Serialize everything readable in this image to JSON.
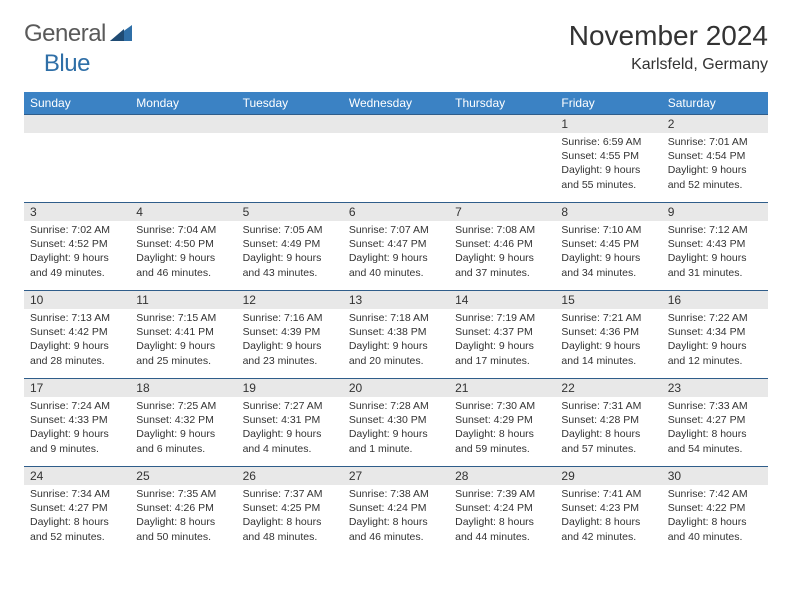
{
  "logo": {
    "general": "General",
    "blue": "Blue"
  },
  "title": "November 2024",
  "location": "Karlsfeld, Germany",
  "colors": {
    "header_bg": "#3b82c4",
    "header_text": "#ffffff",
    "daynum_bg": "#e8e8e8",
    "border": "#2f5d8a",
    "text": "#333333",
    "logo_blue": "#2f6fa7",
    "logo_gray": "#5a5a5a",
    "background": "#ffffff"
  },
  "fonts": {
    "month_title_size": 28,
    "location_size": 16,
    "header_size": 12,
    "daynum_size": 12,
    "body_size": 10.5
  },
  "columns": [
    "Sunday",
    "Monday",
    "Tuesday",
    "Wednesday",
    "Thursday",
    "Friday",
    "Saturday"
  ],
  "weeks": [
    [
      {
        "n": "",
        "sr": "",
        "ss": "",
        "dl": ""
      },
      {
        "n": "",
        "sr": "",
        "ss": "",
        "dl": ""
      },
      {
        "n": "",
        "sr": "",
        "ss": "",
        "dl": ""
      },
      {
        "n": "",
        "sr": "",
        "ss": "",
        "dl": ""
      },
      {
        "n": "",
        "sr": "",
        "ss": "",
        "dl": ""
      },
      {
        "n": "1",
        "sr": "Sunrise: 6:59 AM",
        "ss": "Sunset: 4:55 PM",
        "dl": "Daylight: 9 hours and 55 minutes."
      },
      {
        "n": "2",
        "sr": "Sunrise: 7:01 AM",
        "ss": "Sunset: 4:54 PM",
        "dl": "Daylight: 9 hours and 52 minutes."
      }
    ],
    [
      {
        "n": "3",
        "sr": "Sunrise: 7:02 AM",
        "ss": "Sunset: 4:52 PM",
        "dl": "Daylight: 9 hours and 49 minutes."
      },
      {
        "n": "4",
        "sr": "Sunrise: 7:04 AM",
        "ss": "Sunset: 4:50 PM",
        "dl": "Daylight: 9 hours and 46 minutes."
      },
      {
        "n": "5",
        "sr": "Sunrise: 7:05 AM",
        "ss": "Sunset: 4:49 PM",
        "dl": "Daylight: 9 hours and 43 minutes."
      },
      {
        "n": "6",
        "sr": "Sunrise: 7:07 AM",
        "ss": "Sunset: 4:47 PM",
        "dl": "Daylight: 9 hours and 40 minutes."
      },
      {
        "n": "7",
        "sr": "Sunrise: 7:08 AM",
        "ss": "Sunset: 4:46 PM",
        "dl": "Daylight: 9 hours and 37 minutes."
      },
      {
        "n": "8",
        "sr": "Sunrise: 7:10 AM",
        "ss": "Sunset: 4:45 PM",
        "dl": "Daylight: 9 hours and 34 minutes."
      },
      {
        "n": "9",
        "sr": "Sunrise: 7:12 AM",
        "ss": "Sunset: 4:43 PM",
        "dl": "Daylight: 9 hours and 31 minutes."
      }
    ],
    [
      {
        "n": "10",
        "sr": "Sunrise: 7:13 AM",
        "ss": "Sunset: 4:42 PM",
        "dl": "Daylight: 9 hours and 28 minutes."
      },
      {
        "n": "11",
        "sr": "Sunrise: 7:15 AM",
        "ss": "Sunset: 4:41 PM",
        "dl": "Daylight: 9 hours and 25 minutes."
      },
      {
        "n": "12",
        "sr": "Sunrise: 7:16 AM",
        "ss": "Sunset: 4:39 PM",
        "dl": "Daylight: 9 hours and 23 minutes."
      },
      {
        "n": "13",
        "sr": "Sunrise: 7:18 AM",
        "ss": "Sunset: 4:38 PM",
        "dl": "Daylight: 9 hours and 20 minutes."
      },
      {
        "n": "14",
        "sr": "Sunrise: 7:19 AM",
        "ss": "Sunset: 4:37 PM",
        "dl": "Daylight: 9 hours and 17 minutes."
      },
      {
        "n": "15",
        "sr": "Sunrise: 7:21 AM",
        "ss": "Sunset: 4:36 PM",
        "dl": "Daylight: 9 hours and 14 minutes."
      },
      {
        "n": "16",
        "sr": "Sunrise: 7:22 AM",
        "ss": "Sunset: 4:34 PM",
        "dl": "Daylight: 9 hours and 12 minutes."
      }
    ],
    [
      {
        "n": "17",
        "sr": "Sunrise: 7:24 AM",
        "ss": "Sunset: 4:33 PM",
        "dl": "Daylight: 9 hours and 9 minutes."
      },
      {
        "n": "18",
        "sr": "Sunrise: 7:25 AM",
        "ss": "Sunset: 4:32 PM",
        "dl": "Daylight: 9 hours and 6 minutes."
      },
      {
        "n": "19",
        "sr": "Sunrise: 7:27 AM",
        "ss": "Sunset: 4:31 PM",
        "dl": "Daylight: 9 hours and 4 minutes."
      },
      {
        "n": "20",
        "sr": "Sunrise: 7:28 AM",
        "ss": "Sunset: 4:30 PM",
        "dl": "Daylight: 9 hours and 1 minute."
      },
      {
        "n": "21",
        "sr": "Sunrise: 7:30 AM",
        "ss": "Sunset: 4:29 PM",
        "dl": "Daylight: 8 hours and 59 minutes."
      },
      {
        "n": "22",
        "sr": "Sunrise: 7:31 AM",
        "ss": "Sunset: 4:28 PM",
        "dl": "Daylight: 8 hours and 57 minutes."
      },
      {
        "n": "23",
        "sr": "Sunrise: 7:33 AM",
        "ss": "Sunset: 4:27 PM",
        "dl": "Daylight: 8 hours and 54 minutes."
      }
    ],
    [
      {
        "n": "24",
        "sr": "Sunrise: 7:34 AM",
        "ss": "Sunset: 4:27 PM",
        "dl": "Daylight: 8 hours and 52 minutes."
      },
      {
        "n": "25",
        "sr": "Sunrise: 7:35 AM",
        "ss": "Sunset: 4:26 PM",
        "dl": "Daylight: 8 hours and 50 minutes."
      },
      {
        "n": "26",
        "sr": "Sunrise: 7:37 AM",
        "ss": "Sunset: 4:25 PM",
        "dl": "Daylight: 8 hours and 48 minutes."
      },
      {
        "n": "27",
        "sr": "Sunrise: 7:38 AM",
        "ss": "Sunset: 4:24 PM",
        "dl": "Daylight: 8 hours and 46 minutes."
      },
      {
        "n": "28",
        "sr": "Sunrise: 7:39 AM",
        "ss": "Sunset: 4:24 PM",
        "dl": "Daylight: 8 hours and 44 minutes."
      },
      {
        "n": "29",
        "sr": "Sunrise: 7:41 AM",
        "ss": "Sunset: 4:23 PM",
        "dl": "Daylight: 8 hours and 42 minutes."
      },
      {
        "n": "30",
        "sr": "Sunrise: 7:42 AM",
        "ss": "Sunset: 4:22 PM",
        "dl": "Daylight: 8 hours and 40 minutes."
      }
    ]
  ]
}
